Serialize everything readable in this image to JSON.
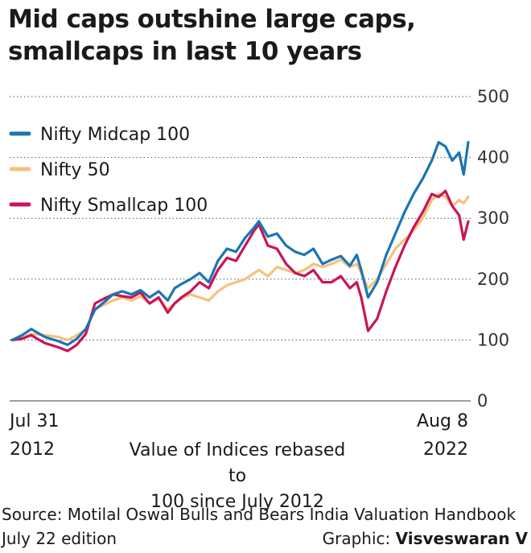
{
  "title_line1": "Mid caps outshine large caps,",
  "title_line2": "smallcaps in last 10 years",
  "note_line1": "Value of Indices rebased to",
  "note_line2": "100 since July 2012",
  "source_line1": "Source: Motilal Oswal Bulls and Bears India Valuation Handbook",
  "source_line2": "July 22 edition",
  "credit_label": "Graphic: ",
  "credit_name": "Visveswaran V",
  "chart_data": {
    "type": "line",
    "x_start_label": [
      "Jul 31",
      "2012"
    ],
    "x_end_label": [
      "Aug 8",
      "2022"
    ],
    "ylim": [
      0,
      500
    ],
    "yticks": [
      0,
      100,
      200,
      300,
      400,
      500
    ],
    "grid": true,
    "legend_position": "top-left",
    "colors": {
      "midcap": "#1a75b5",
      "nifty50": "#f5c27a",
      "smallcap": "#c8145a"
    },
    "x": [
      2012.58,
      2012.8,
      2013.0,
      2013.3,
      2013.6,
      2013.8,
      2014.0,
      2014.2,
      2014.4,
      2014.6,
      2014.8,
      2015.0,
      2015.2,
      2015.4,
      2015.6,
      2015.8,
      2016.0,
      2016.15,
      2016.3,
      2016.5,
      2016.7,
      2016.9,
      2017.1,
      2017.3,
      2017.5,
      2017.7,
      2017.9,
      2018.0,
      2018.2,
      2018.4,
      2018.6,
      2018.8,
      2019.0,
      2019.2,
      2019.4,
      2019.6,
      2019.8,
      2020.0,
      2020.15,
      2020.25,
      2020.4,
      2020.6,
      2020.8,
      2021.0,
      2021.2,
      2021.4,
      2021.6,
      2021.8,
      2021.95,
      2022.1,
      2022.25,
      2022.4,
      2022.5,
      2022.6
    ],
    "series": [
      {
        "name": "Nifty Midcap 100",
        "key": "midcap",
        "values": [
          100,
          108,
          118,
          105,
          98,
          92,
          102,
          118,
          150,
          162,
          175,
          180,
          175,
          182,
          170,
          180,
          165,
          185,
          192,
          200,
          210,
          195,
          230,
          250,
          245,
          268,
          285,
          295,
          270,
          275,
          255,
          245,
          240,
          250,
          225,
          232,
          238,
          222,
          240,
          215,
          170,
          195,
          240,
          275,
          310,
          340,
          365,
          395,
          425,
          418,
          395,
          408,
          372,
          425
        ]
      },
      {
        "name": "Nifty 50",
        "key": "nifty50",
        "values": [
          100,
          104,
          110,
          108,
          105,
          100,
          108,
          118,
          150,
          158,
          165,
          170,
          165,
          172,
          160,
          168,
          150,
          160,
          168,
          175,
          170,
          165,
          180,
          190,
          195,
          200,
          210,
          215,
          205,
          220,
          215,
          210,
          215,
          225,
          220,
          225,
          232,
          220,
          225,
          210,
          185,
          200,
          225,
          250,
          265,
          280,
          300,
          330,
          340,
          335,
          320,
          330,
          325,
          335
        ]
      },
      {
        "name": "Nifty Smallcap 100",
        "key": "smallcap",
        "values": [
          100,
          102,
          108,
          95,
          88,
          82,
          92,
          110,
          160,
          168,
          175,
          172,
          170,
          178,
          160,
          170,
          145,
          160,
          170,
          180,
          195,
          185,
          215,
          235,
          230,
          255,
          280,
          290,
          255,
          250,
          225,
          210,
          205,
          215,
          195,
          195,
          205,
          185,
          195,
          170,
          115,
          135,
          180,
          220,
          255,
          285,
          310,
          340,
          335,
          345,
          320,
          305,
          265,
          295
        ]
      }
    ]
  }
}
